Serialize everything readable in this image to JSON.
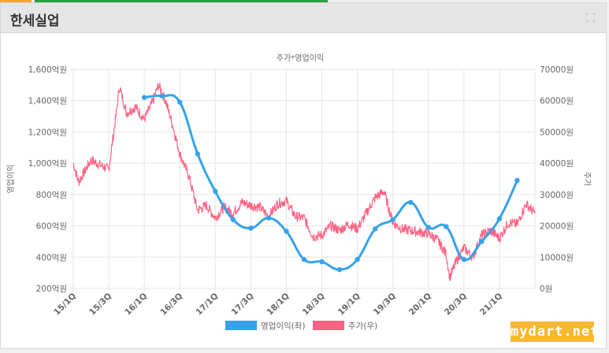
{
  "panel": {
    "title": "한세실업",
    "watermark": "mydart.net"
  },
  "chart_data": {
    "type": "line",
    "title": "주가*영업이익",
    "x_ticks": [
      "15/1Q",
      "15/3Q",
      "16/1Q",
      "16/3Q",
      "17/1Q",
      "17/3Q",
      "18/1Q",
      "18/3Q",
      "19/1Q",
      "19/3Q",
      "20/1Q",
      "20/3Q",
      "21/1Q"
    ],
    "y_left": {
      "label": "영업이익",
      "range": [
        200,
        1600
      ],
      "ticks": [
        "1,600억원",
        "1,400억원",
        "1,200억원",
        "1,000억원",
        "800억원",
        "600억원",
        "400억원",
        "200억원"
      ],
      "tick_values": [
        1600,
        1400,
        1200,
        1000,
        800,
        600,
        400,
        200
      ]
    },
    "y_right": {
      "label": "주가",
      "range": [
        0,
        70000
      ],
      "ticks": [
        "70000원",
        "60000원",
        "50000원",
        "40000원",
        "30000원",
        "20000원",
        "10000원",
        "0원"
      ],
      "tick_values": [
        70000,
        60000,
        50000,
        40000,
        30000,
        20000,
        10000,
        0
      ]
    },
    "grid": true,
    "legend_position": "bottom",
    "series": [
      {
        "name": "영업이익(좌)",
        "axis": "left",
        "color": "#36a2eb",
        "points": [
          {
            "x": 4,
            "y": 1420
          },
          {
            "x": 5,
            "y": 1430
          },
          {
            "x": 6,
            "y": 1390
          },
          {
            "x": 7,
            "y": 1060
          },
          {
            "x": 8,
            "y": 820
          },
          {
            "x": 9,
            "y": 640
          },
          {
            "x": 10,
            "y": 585
          },
          {
            "x": 11,
            "y": 650
          },
          {
            "x": 12,
            "y": 565
          },
          {
            "x": 13,
            "y": 385
          },
          {
            "x": 14,
            "y": 370
          },
          {
            "x": 15,
            "y": 320
          },
          {
            "x": 16,
            "y": 385
          },
          {
            "x": 17,
            "y": 580
          },
          {
            "x": 18,
            "y": 640
          },
          {
            "x": 19,
            "y": 750
          },
          {
            "x": 20,
            "y": 590
          },
          {
            "x": 21,
            "y": 595
          },
          {
            "x": 22,
            "y": 385
          },
          {
            "x": 23,
            "y": 500
          },
          {
            "x": 24,
            "y": 645
          },
          {
            "x": 25,
            "y": 890
          }
        ]
      },
      {
        "name": "주가(우)",
        "axis": "right",
        "color": "#ff6384",
        "points": [
          {
            "x": 0,
            "y": 40000
          },
          {
            "x": 0.3,
            "y": 34000
          },
          {
            "x": 1,
            "y": 41000
          },
          {
            "x": 1.5,
            "y": 39500
          },
          {
            "x": 2,
            "y": 38000
          },
          {
            "x": 2.4,
            "y": 55000
          },
          {
            "x": 2.6,
            "y": 64500
          },
          {
            "x": 3,
            "y": 56000
          },
          {
            "x": 3.5,
            "y": 58000
          },
          {
            "x": 4,
            "y": 54000
          },
          {
            "x": 4.5,
            "y": 60000
          },
          {
            "x": 4.8,
            "y": 65000
          },
          {
            "x": 5.2,
            "y": 60000
          },
          {
            "x": 5.6,
            "y": 52000
          },
          {
            "x": 6,
            "y": 43000
          },
          {
            "x": 6.5,
            "y": 36000
          },
          {
            "x": 7,
            "y": 25000
          },
          {
            "x": 7.5,
            "y": 26500
          },
          {
            "x": 8,
            "y": 22500
          },
          {
            "x": 8.5,
            "y": 26000
          },
          {
            "x": 9,
            "y": 24000
          },
          {
            "x": 9.5,
            "y": 27500
          },
          {
            "x": 10,
            "y": 26500
          },
          {
            "x": 10.5,
            "y": 26000
          },
          {
            "x": 11,
            "y": 23000
          },
          {
            "x": 11.5,
            "y": 27000
          },
          {
            "x": 12,
            "y": 28000
          },
          {
            "x": 12.5,
            "y": 23000
          },
          {
            "x": 13,
            "y": 22500
          },
          {
            "x": 13.5,
            "y": 16500
          },
          {
            "x": 14,
            "y": 17000
          },
          {
            "x": 14.5,
            "y": 20000
          },
          {
            "x": 15,
            "y": 18500
          },
          {
            "x": 15.5,
            "y": 20500
          },
          {
            "x": 16,
            "y": 19000
          },
          {
            "x": 16.5,
            "y": 24000
          },
          {
            "x": 17,
            "y": 29000
          },
          {
            "x": 17.5,
            "y": 31000
          },
          {
            "x": 18,
            "y": 21000
          },
          {
            "x": 18.5,
            "y": 19000
          },
          {
            "x": 19,
            "y": 18500
          },
          {
            "x": 19.5,
            "y": 18000
          },
          {
            "x": 20,
            "y": 17500
          },
          {
            "x": 20.5,
            "y": 15500
          },
          {
            "x": 21,
            "y": 11000
          },
          {
            "x": 21.2,
            "y": 3500
          },
          {
            "x": 21.6,
            "y": 9000
          },
          {
            "x": 22,
            "y": 13000
          },
          {
            "x": 22.5,
            "y": 10000
          },
          {
            "x": 23,
            "y": 17000
          },
          {
            "x": 23.5,
            "y": 18500
          },
          {
            "x": 24,
            "y": 16000
          },
          {
            "x": 24.5,
            "y": 21000
          },
          {
            "x": 25,
            "y": 20500
          },
          {
            "x": 25.5,
            "y": 27000
          },
          {
            "x": 26,
            "y": 24000
          }
        ]
      }
    ]
  }
}
